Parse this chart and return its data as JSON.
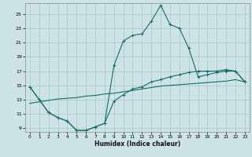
{
  "xlabel": "Humidex (Indice chaleur)",
  "background_color": "#cde3e5",
  "grid_color": "#aacdd0",
  "line_color": "#1a6b6b",
  "xlim": [
    -0.5,
    23.5
  ],
  "ylim": [
    8.5,
    26.5
  ],
  "xticks": [
    0,
    1,
    2,
    3,
    4,
    5,
    6,
    7,
    8,
    9,
    10,
    11,
    12,
    13,
    14,
    15,
    16,
    17,
    18,
    19,
    20,
    21,
    22,
    23
  ],
  "yticks": [
    9,
    11,
    13,
    15,
    17,
    19,
    21,
    23,
    25
  ],
  "curve1_x": [
    0,
    1,
    2,
    3,
    4,
    5,
    6,
    7,
    8,
    9,
    10,
    11,
    12,
    13,
    14,
    15,
    16,
    17,
    18,
    19,
    20,
    21,
    22,
    23
  ],
  "curve1_y": [
    14.8,
    13.0,
    11.2,
    10.5,
    10.0,
    8.7,
    8.7,
    9.2,
    9.7,
    17.8,
    21.2,
    22.0,
    22.2,
    24.0,
    26.2,
    23.5,
    23.0,
    20.2,
    16.2,
    16.5,
    16.8,
    17.0,
    17.0,
    15.5
  ],
  "curve2_x": [
    0,
    1,
    2,
    3,
    4,
    5,
    6,
    7,
    8,
    9,
    10,
    11,
    12,
    13,
    14,
    15,
    16,
    17,
    18,
    19,
    20,
    21,
    22,
    23
  ],
  "curve2_y": [
    14.8,
    13.0,
    11.2,
    10.5,
    10.0,
    8.7,
    8.7,
    9.2,
    9.7,
    12.8,
    13.7,
    14.5,
    14.8,
    15.5,
    15.8,
    16.2,
    16.5,
    16.8,
    17.0,
    17.0,
    17.0,
    17.2,
    17.0,
    15.5
  ],
  "curve3_x": [
    0,
    1,
    2,
    3,
    4,
    5,
    6,
    7,
    8,
    9,
    10,
    11,
    12,
    13,
    14,
    15,
    16,
    17,
    18,
    19,
    20,
    21,
    22,
    23
  ],
  "curve3_y": [
    12.5,
    12.7,
    12.9,
    13.1,
    13.2,
    13.3,
    13.5,
    13.6,
    13.8,
    13.9,
    14.1,
    14.3,
    14.5,
    14.7,
    14.9,
    15.0,
    15.1,
    15.2,
    15.3,
    15.4,
    15.5,
    15.6,
    15.8,
    15.5
  ]
}
